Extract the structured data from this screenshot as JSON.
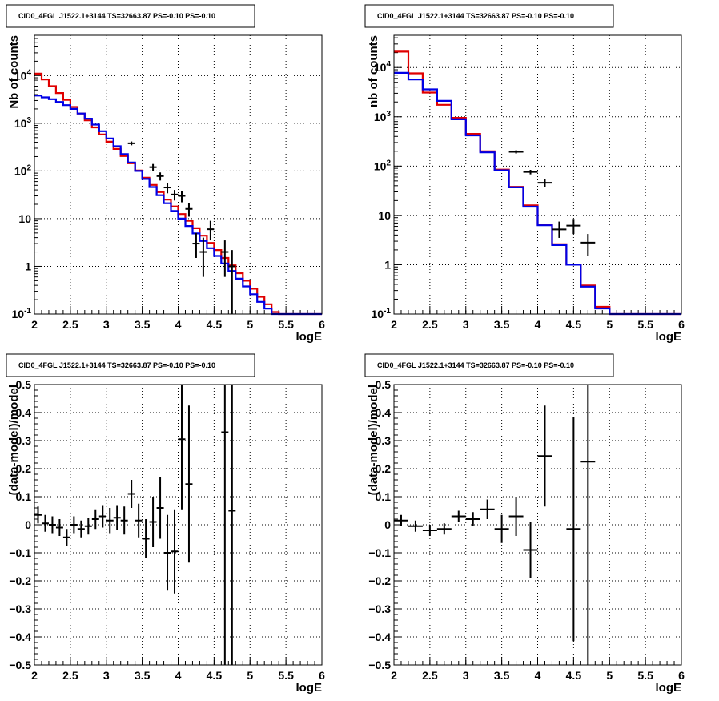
{
  "panels": [
    {
      "id": "top-left",
      "title": "CID0_4FGL J1522.1+3144 TS=32663.87 PS=-0.10 PS=-0.10",
      "type": "histogram",
      "log_y": true,
      "xlabel": "logE",
      "ylabel": "Nb of counts",
      "xlim": [
        2,
        6
      ],
      "ylim": [
        0.1,
        70000
      ],
      "xticks": [
        "2",
        "2.5",
        "3",
        "3.5",
        "4",
        "4.5",
        "5",
        "5.5",
        "6"
      ],
      "yticks": [
        "10^-1",
        "1",
        "10",
        "10^2",
        "10^3",
        "10^4"
      ],
      "bin_width": 0.1,
      "red_values": [
        11000,
        8300,
        6000,
        4300,
        3100,
        2200,
        1600,
        1150,
        820,
        580,
        410,
        290,
        205,
        145,
        102,
        72,
        51,
        36,
        25,
        18,
        12.5,
        9,
        6.3,
        4.4,
        3.1,
        2.2,
        1.5,
        1.05,
        0.72,
        0.5,
        0.34,
        0.23,
        0.16,
        0.11,
        0.1,
        0.1,
        0.1,
        0.1,
        0.1,
        0.1
      ],
      "blue_values": [
        3800,
        3500,
        3200,
        2800,
        2400,
        2000,
        1600,
        1250,
        940,
        680,
        480,
        330,
        225,
        150,
        100,
        68,
        46,
        31,
        21,
        14.5,
        10,
        7,
        4.9,
        3.4,
        2.4,
        1.65,
        1.15,
        0.8,
        0.55,
        0.38,
        0.26,
        0.18,
        0.13,
        0.1,
        0.1,
        0.1,
        0.1,
        0.1,
        0.1,
        0.1
      ],
      "data_points": [
        {
          "x": 3.35,
          "y": 380,
          "lo": 345,
          "hi": 415
        },
        {
          "x": 3.65,
          "y": 120,
          "lo": 100,
          "hi": 140
        },
        {
          "x": 3.75,
          "y": 78,
          "lo": 63,
          "hi": 93
        },
        {
          "x": 3.85,
          "y": 45,
          "lo": 34,
          "hi": 56
        },
        {
          "x": 3.95,
          "y": 32,
          "lo": 24,
          "hi": 40
        },
        {
          "x": 4.05,
          "y": 30,
          "lo": 22,
          "hi": 38
        },
        {
          "x": 4.15,
          "y": 16,
          "lo": 11,
          "hi": 21
        },
        {
          "x": 4.25,
          "y": 3,
          "lo": 1.5,
          "hi": 5
        },
        {
          "x": 4.35,
          "y": 2,
          "lo": 0.6,
          "hi": 4
        },
        {
          "x": 4.45,
          "y": 6,
          "lo": 3.5,
          "hi": 9
        },
        {
          "x": 4.65,
          "y": 2,
          "lo": 0.6,
          "hi": 3.5
        },
        {
          "x": 4.75,
          "y": 1,
          "lo": 0.1,
          "hi": 2.2
        }
      ]
    },
    {
      "id": "top-right",
      "title": "CID0_4FGL J1522.1+3144 TS=32663.87 PS=-0.10 PS=-0.10",
      "type": "histogram",
      "log_y": true,
      "xlabel": "logE",
      "ylabel": "nb of counts",
      "xlim": [
        2,
        6
      ],
      "ylim": [
        0.1,
        45000
      ],
      "xticks": [
        "2",
        "2.5",
        "3",
        "3.5",
        "4",
        "4.5",
        "5",
        "5.5",
        "6"
      ],
      "yticks": [
        "10^-1",
        "1",
        "10",
        "10^2",
        "10^3",
        "10^4"
      ],
      "bin_width": 0.2,
      "red_values": [
        21000,
        7600,
        3100,
        1750,
        950,
        450,
        200,
        85,
        38,
        16,
        6.5,
        2.6,
        1.0,
        0.38,
        0.14,
        0.1,
        0.1,
        0.1,
        0.1,
        0.1
      ],
      "blue_values": [
        7800,
        5700,
        3600,
        2100,
        890,
        420,
        190,
        82,
        37,
        15,
        6.3,
        2.5,
        1.0,
        0.36,
        0.13,
        0.1,
        0.1,
        0.1,
        0.1,
        0.1
      ],
      "data_points": [
        {
          "x": 3.7,
          "y": 195,
          "lo": 180,
          "hi": 210
        },
        {
          "x": 3.9,
          "y": 76,
          "lo": 68,
          "hi": 84
        },
        {
          "x": 4.1,
          "y": 46,
          "lo": 38,
          "hi": 54
        },
        {
          "x": 4.3,
          "y": 5.2,
          "lo": 3.5,
          "hi": 7.5
        },
        {
          "x": 4.5,
          "y": 6.2,
          "lo": 4.2,
          "hi": 8.5
        },
        {
          "x": 4.7,
          "y": 2.8,
          "lo": 1.5,
          "hi": 4.2
        }
      ]
    },
    {
      "id": "bottom-left",
      "title": "CID0_4FGL J1522.1+3144 TS=32663.87 PS=-0.10 PS=-0.10",
      "type": "residual",
      "log_y": false,
      "xlabel": "logE",
      "ylabel": "(data-model)/model",
      "xlim": [
        2,
        6
      ],
      "ylim": [
        -0.5,
        0.5
      ],
      "xticks": [
        "2",
        "2.5",
        "3",
        "3.5",
        "4",
        "4.5",
        "5",
        "5.5",
        "6"
      ],
      "yticks": [
        "−0.5",
        "−0.4",
        "−0.3",
        "−0.2",
        "−0.1",
        "0",
        "0.1",
        "0.2",
        "0.3",
        "0.4",
        "0.5"
      ],
      "bin_width": 0.1,
      "data_points": [
        {
          "x": 2.05,
          "y": 0.035,
          "err": 0.03
        },
        {
          "x": 2.15,
          "y": 0.005,
          "err": 0.03
        },
        {
          "x": 2.25,
          "y": 0.0,
          "err": 0.03
        },
        {
          "x": 2.35,
          "y": -0.01,
          "err": 0.03
        },
        {
          "x": 2.45,
          "y": -0.045,
          "err": 0.03
        },
        {
          "x": 2.55,
          "y": 0.0,
          "err": 0.03
        },
        {
          "x": 2.65,
          "y": -0.015,
          "err": 0.03
        },
        {
          "x": 2.75,
          "y": -0.005,
          "err": 0.03
        },
        {
          "x": 2.85,
          "y": 0.02,
          "err": 0.035
        },
        {
          "x": 2.95,
          "y": 0.03,
          "err": 0.04
        },
        {
          "x": 3.05,
          "y": 0.015,
          "err": 0.045
        },
        {
          "x": 3.15,
          "y": 0.025,
          "err": 0.045
        },
        {
          "x": 3.25,
          "y": 0.015,
          "err": 0.05
        },
        {
          "x": 3.35,
          "y": 0.11,
          "err": 0.05
        },
        {
          "x": 3.45,
          "y": 0.015,
          "err": 0.06
        },
        {
          "x": 3.55,
          "y": -0.05,
          "err": 0.07
        },
        {
          "x": 3.65,
          "y": 0.01,
          "err": 0.09
        },
        {
          "x": 3.75,
          "y": 0.06,
          "err": 0.11
        },
        {
          "x": 3.85,
          "y": -0.1,
          "err": 0.135
        },
        {
          "x": 3.95,
          "y": -0.095,
          "err": 0.15
        },
        {
          "x": 4.05,
          "y": 0.305,
          "err": 0.25
        },
        {
          "x": 4.15,
          "y": 0.145,
          "err": 0.28
        },
        {
          "x": 4.65,
          "y": 0.33,
          "err": 1.0
        },
        {
          "x": 4.75,
          "y": 0.05,
          "err": 1.0
        }
      ]
    },
    {
      "id": "bottom-right",
      "title": "CID0_4FGL J1522.1+3144 TS=32663.87 PS=-0.10 PS=-0.10",
      "type": "residual",
      "log_y": false,
      "xlabel": "logE",
      "ylabel": "(data-model)/model",
      "xlim": [
        2,
        6
      ],
      "ylim": [
        -0.5,
        0.5
      ],
      "xticks": [
        "2",
        "2.5",
        "3",
        "3.5",
        "4",
        "4.5",
        "5",
        "5.5",
        "6"
      ],
      "yticks": [
        "−0.5",
        "−0.4",
        "−0.3",
        "−0.2",
        "−0.1",
        "0",
        "0.1",
        "0.2",
        "0.3",
        "0.4",
        "0.5"
      ],
      "bin_width": 0.2,
      "data_points": [
        {
          "x": 2.1,
          "y": 0.015,
          "err": 0.02
        },
        {
          "x": 2.3,
          "y": -0.005,
          "err": 0.02
        },
        {
          "x": 2.5,
          "y": -0.02,
          "err": 0.02
        },
        {
          "x": 2.7,
          "y": -0.015,
          "err": 0.02
        },
        {
          "x": 2.9,
          "y": 0.03,
          "err": 0.02
        },
        {
          "x": 3.1,
          "y": 0.02,
          "err": 0.025
        },
        {
          "x": 3.3,
          "y": 0.055,
          "err": 0.035
        },
        {
          "x": 3.5,
          "y": -0.015,
          "err": 0.05
        },
        {
          "x": 3.7,
          "y": 0.03,
          "err": 0.07
        },
        {
          "x": 3.9,
          "y": -0.09,
          "err": 0.1
        },
        {
          "x": 4.1,
          "y": 0.245,
          "err": 0.18
        },
        {
          "x": 4.5,
          "y": -0.015,
          "err": 0.4
        },
        {
          "x": 4.7,
          "y": 0.225,
          "err": 0.75
        }
      ]
    }
  ],
  "colors": {
    "model_red": "#e00000",
    "model_blue": "#0000e6",
    "data": "#000000",
    "grid": "#000000",
    "frame": "#000000"
  },
  "chart_data": [
    {
      "type": "line",
      "title": "CID0_4FGL J1522.1+3144 TS=32663.87 PS=-0.10 PS=-0.10",
      "xlabel": "logE",
      "ylabel": "Nb of counts",
      "xlim": [
        2,
        6
      ],
      "ylim": [
        0.1,
        70000
      ],
      "y_scale": "log",
      "grid": true,
      "series": [
        {
          "values": "red histogram, 0.1 bins (see panels[0].red_values)"
        },
        {
          "values": "blue histogram, 0.1 bins (see panels[0].blue_values)"
        },
        {
          "values": "data points with error bars (see panels[0].data_points)"
        }
      ]
    },
    {
      "type": "line",
      "title": "CID0_4FGL J1522.1+3144 TS=32663.87 PS=-0.10 PS=-0.10",
      "xlabel": "logE",
      "ylabel": "nb of counts",
      "xlim": [
        2,
        6
      ],
      "ylim": [
        0.1,
        45000
      ],
      "y_scale": "log",
      "grid": true
    },
    {
      "type": "scatter",
      "title": "CID0_4FGL J1522.1+3144 TS=32663.87 PS=-0.10 PS=-0.10",
      "xlabel": "logE",
      "ylabel": "(data-model)/model",
      "xlim": [
        2,
        6
      ],
      "ylim": [
        -0.5,
        0.5
      ],
      "grid": true
    },
    {
      "type": "scatter",
      "title": "CID0_4FGL J1522.1+3144 TS=32663.87 PS=-0.10 PS=-0.10",
      "xlabel": "logE",
      "ylabel": "(data-model)/model",
      "xlim": [
        2,
        6
      ],
      "ylim": [
        -0.5,
        0.5
      ],
      "grid": true
    }
  ]
}
